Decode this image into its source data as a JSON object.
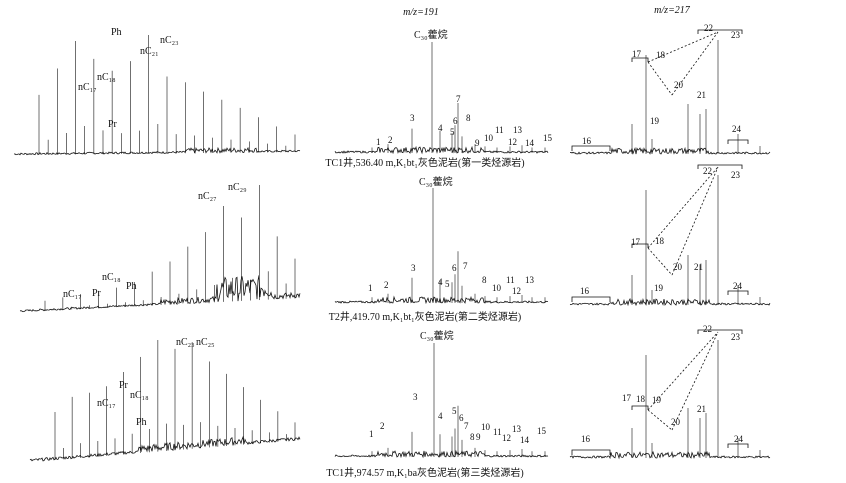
{
  "headers": {
    "col2": "m/z=191",
    "col3": "m/z=217"
  },
  "rows": [
    {
      "caption": "TC1井,536.40 m,K₁bt₁灰色泥岩(第一类烃源岩)",
      "gc_labels": [
        "Ph",
        "nC₂₃",
        "nC₂₁",
        "nC₁₈",
        "nC₁₇",
        "Pr"
      ],
      "hopane_label": "C₃₀藿烷",
      "hopane_peaks": [
        "1",
        "2",
        "3",
        "4",
        "5",
        "6",
        "7",
        "8",
        "9",
        "10",
        "11",
        "12",
        "13",
        "14",
        "15"
      ],
      "sterane_peaks": [
        "16",
        "17",
        "18",
        "19",
        "20",
        "21",
        "22",
        "23",
        "24"
      ]
    },
    {
      "caption": "T2井,419.70 m,K₁bt₁灰色泥岩(第二类烃源岩)",
      "gc_labels": [
        "nC₂₇",
        "nC₂₉",
        "nC₁₈",
        "Ph",
        "nC₁₇",
        "Pr"
      ],
      "hopane_label": "C₃₀藿烷",
      "hopane_peaks": [
        "1",
        "2",
        "3",
        "4",
        "5",
        "6",
        "7",
        "8",
        "10",
        "11",
        "12",
        "13"
      ],
      "sterane_peaks": [
        "16",
        "17",
        "18",
        "19",
        "20",
        "21",
        "22",
        "23",
        "24"
      ]
    },
    {
      "caption": "TC1井,974.57 m,K₁ba灰色泥岩(第三类烃源岩)",
      "gc_labels": [
        "nC₂₃",
        "nC₂₅",
        "Pr",
        "nC₁₈",
        "nC₁₇",
        "Ph"
      ],
      "hopane_label": "C₃₀藿烷",
      "hopane_peaks": [
        "1",
        "2",
        "3",
        "4",
        "5",
        "6",
        "7",
        "8",
        "9",
        "10",
        "11",
        "12",
        "13",
        "14",
        "15"
      ],
      "sterane_peaks": [
        "16",
        "17",
        "18",
        "19",
        "20",
        "21",
        "22",
        "23",
        "24"
      ]
    }
  ],
  "chart_data": [
    {
      "type": "line",
      "panel": "row1-gc",
      "labels": [
        "Ph",
        "nC₂₃",
        "nC₂₁",
        "nC₁₈",
        "nC₁₇",
        "Pr"
      ],
      "x": [
        17,
        18,
        19,
        20,
        21,
        22,
        23,
        24,
        25,
        26,
        27,
        28,
        29,
        30,
        31
      ],
      "y": [
        50,
        72,
        95,
        80,
        70,
        78,
        100,
        65,
        60,
        52,
        45,
        38,
        30,
        22,
        15
      ]
    },
    {
      "type": "line",
      "panel": "row2-gc",
      "labels": [
        "nC₂₇",
        "nC₂₉",
        "nC₁₈",
        "Ph",
        "nC₁₇",
        "Pr"
      ],
      "x": [
        17,
        18,
        19,
        20,
        21,
        22,
        23,
        24,
        25,
        26,
        27,
        28,
        29,
        30,
        31
      ],
      "y": [
        8,
        10,
        12,
        14,
        16,
        20,
        28,
        36,
        48,
        60,
        82,
        72,
        100,
        55,
        35
      ]
    },
    {
      "type": "line",
      "panel": "row3-gc",
      "labels": [
        "nC₂₃",
        "nC₂₅",
        "Pr",
        "nC₁₈",
        "nC₁₇",
        "Ph"
      ],
      "x": [
        17,
        18,
        19,
        20,
        21,
        22,
        23,
        24,
        25,
        26,
        27,
        28,
        29,
        30,
        31
      ],
      "y": [
        40,
        52,
        55,
        60,
        72,
        85,
        100,
        92,
        98,
        80,
        68,
        55,
        42,
        30,
        18
      ]
    }
  ]
}
